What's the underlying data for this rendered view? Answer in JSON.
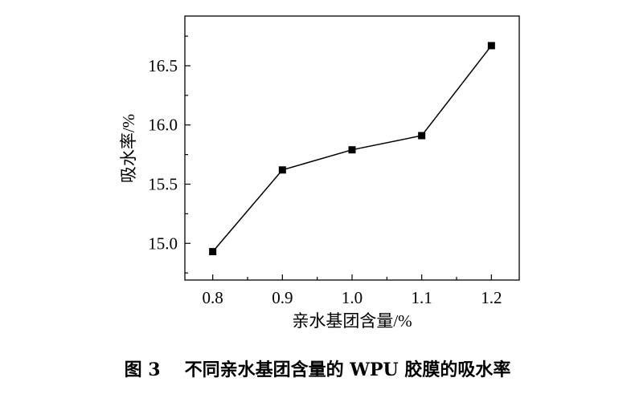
{
  "chart_data": {
    "type": "line",
    "title": "",
    "xlabel": "亲水基团含量/%",
    "ylabel": "吸水率/%",
    "x": [
      0.8,
      0.9,
      1.0,
      1.1,
      1.2
    ],
    "x_tick_labels": [
      "0.8",
      "0.9",
      "1.0",
      "1.1",
      "1.2"
    ],
    "y_ticks": [
      15.0,
      15.5,
      16.0,
      16.5
    ],
    "y_tick_labels": [
      "15.0",
      "15.5",
      "16.0",
      "16.5"
    ],
    "xlim": [
      0.76,
      1.24
    ],
    "ylim": [
      14.69,
      16.92
    ],
    "grid": false,
    "marker": "square",
    "series": [
      {
        "values": [
          14.93,
          15.62,
          15.79,
          15.91,
          16.67
        ]
      }
    ]
  },
  "caption": {
    "figure_number": "图 3",
    "text": "不同亲水基团含量的 WPU 胶膜的吸水率"
  }
}
